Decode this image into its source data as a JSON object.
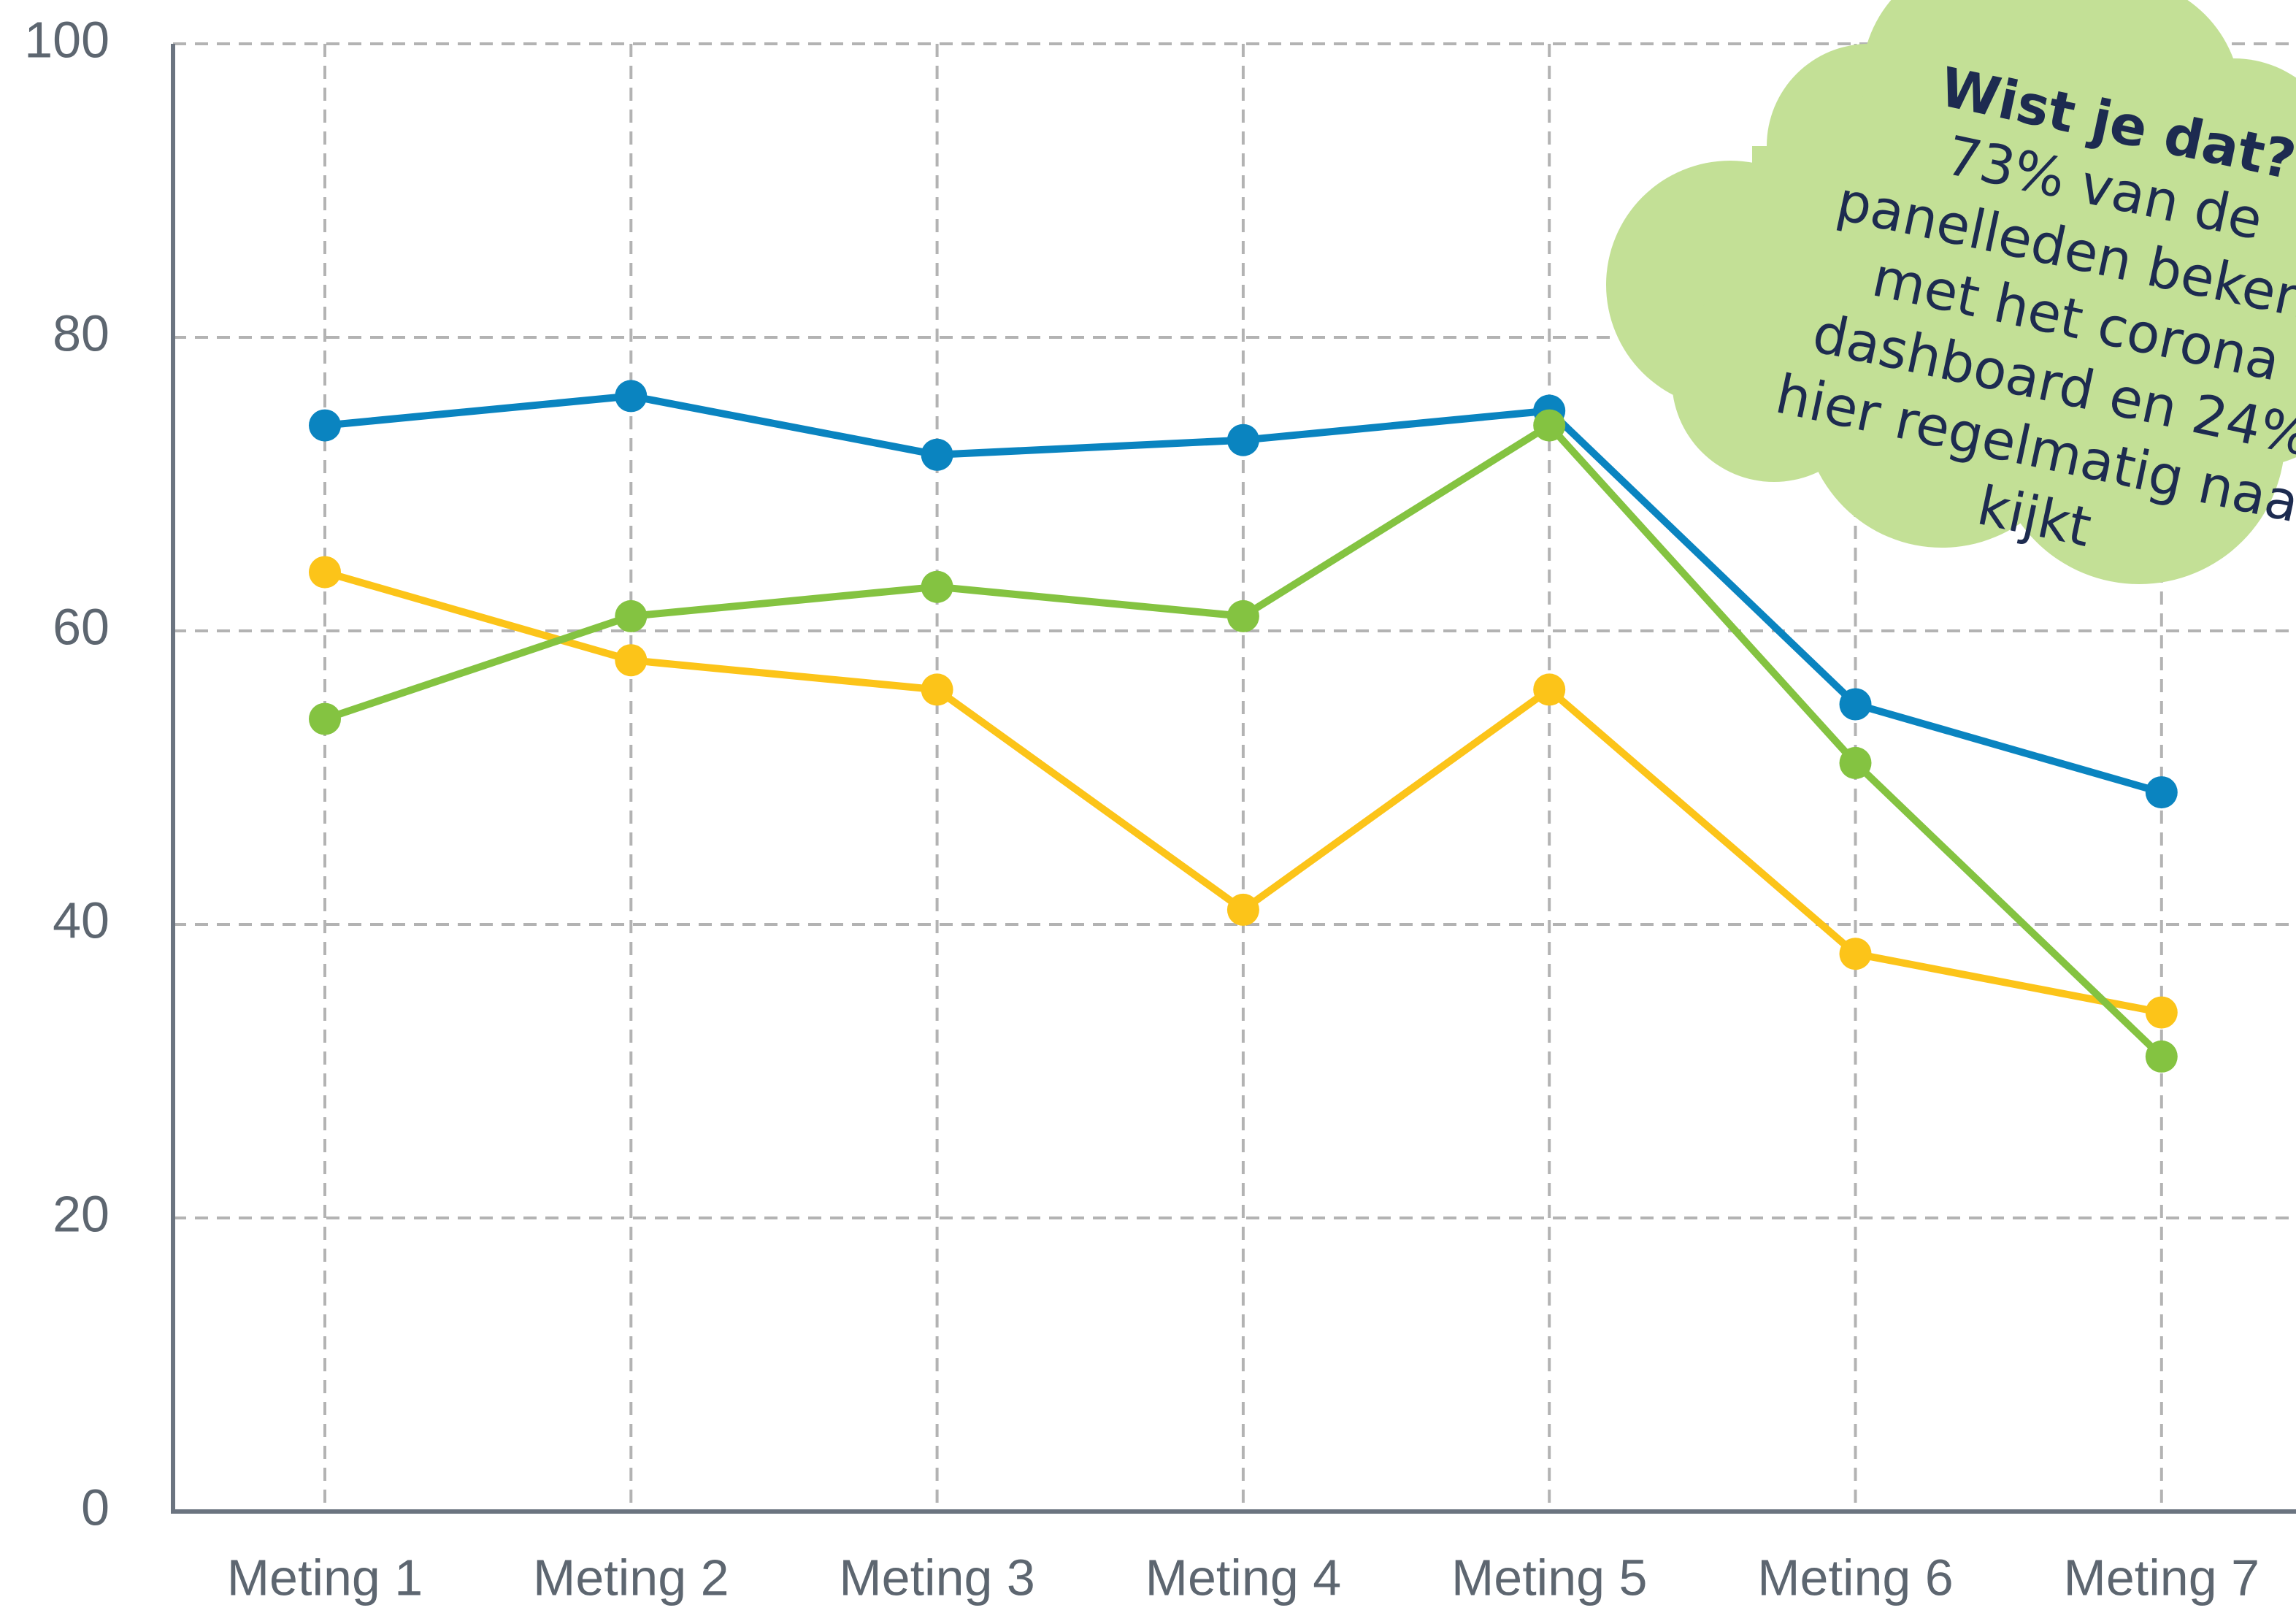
{
  "chart_data": {
    "type": "line",
    "categories": [
      "Meting 1",
      "Meting 2",
      "Meting 3",
      "Meting 4",
      "Meting 5",
      "Meting 6",
      "Meting 7"
    ],
    "series": [
      {
        "color": "#0a84c0",
        "values": [
          74,
          76,
          72,
          73,
          75,
          55,
          49
        ]
      },
      {
        "color": "#fcc419",
        "values": [
          64,
          58,
          56,
          41,
          56,
          38,
          34
        ]
      },
      {
        "color": "#84c341",
        "values": [
          54,
          61,
          63,
          61,
          74,
          51,
          31
        ]
      }
    ],
    "ylim": [
      0,
      100
    ],
    "yticks": [
      0,
      20,
      40,
      60,
      80,
      100
    ],
    "grid": true,
    "annotation": {
      "title": "Wist je dat?",
      "lines": [
        "73% van de",
        "panelleden bekend",
        "met het corona",
        "dashboard en 24%",
        "hier regelmatig naar",
        "kijkt"
      ]
    }
  }
}
